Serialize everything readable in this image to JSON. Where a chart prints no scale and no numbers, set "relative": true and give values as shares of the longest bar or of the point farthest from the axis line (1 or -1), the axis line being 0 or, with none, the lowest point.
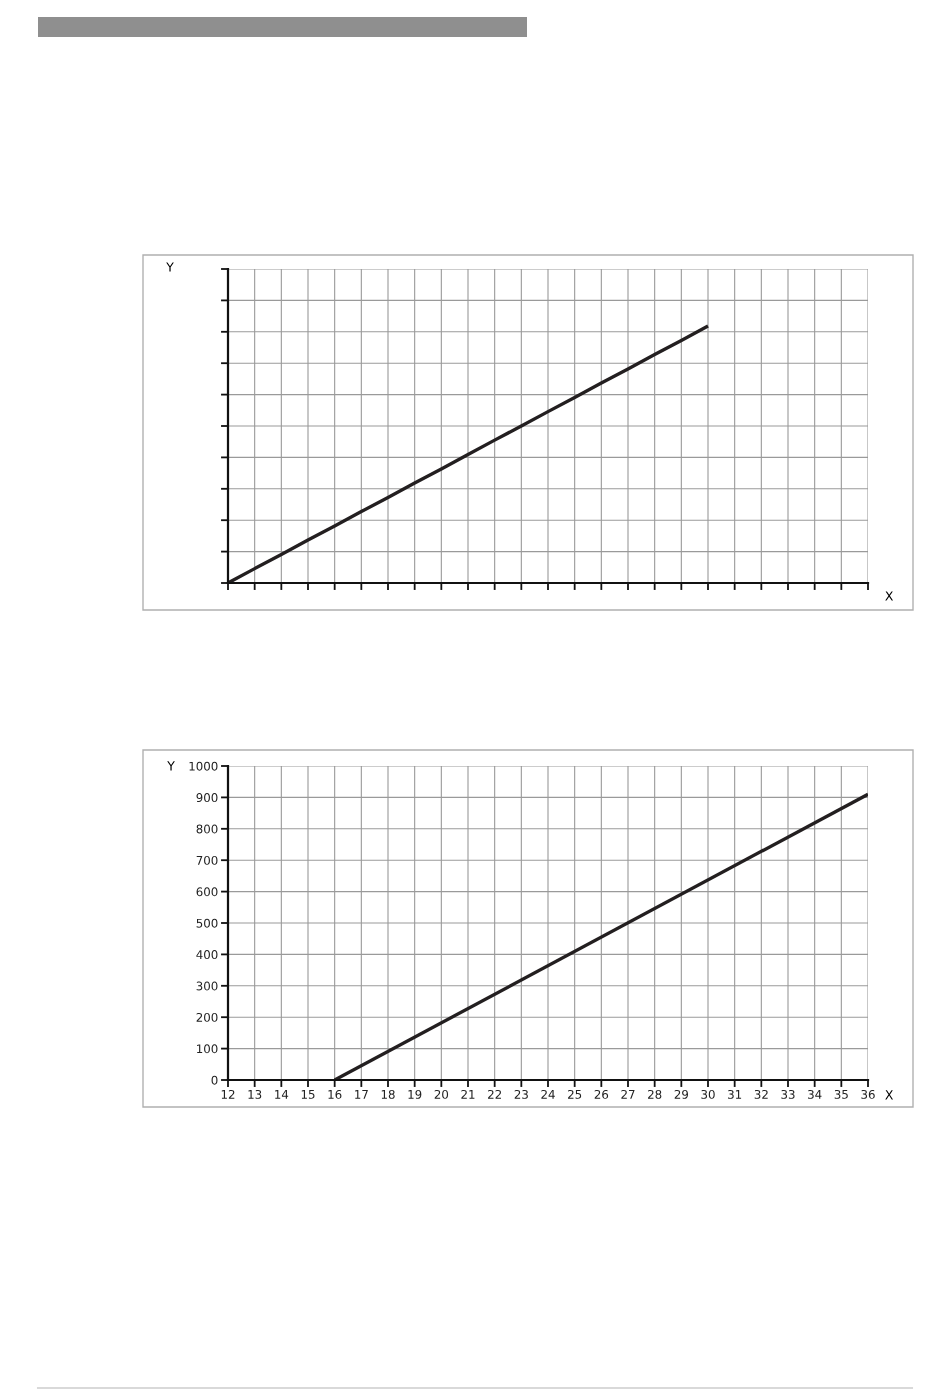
{
  "chart_data": [
    {
      "type": "line",
      "relative": true,
      "xlabel": "X",
      "ylabel": "Y",
      "categories": [
        null,
        null,
        null,
        null,
        null,
        null,
        null,
        null,
        null,
        null,
        null,
        null,
        null,
        null,
        null,
        null,
        null,
        null,
        null,
        null,
        null,
        null,
        null,
        null,
        null
      ],
      "series": [
        {
          "color": "#231f20",
          "values": [
            0,
            0.056,
            0.111,
            0.167,
            0.222,
            0.278,
            0.333,
            0.389,
            0.444,
            0.5,
            0.556,
            0.611,
            0.667,
            0.722,
            0.778,
            0.833,
            0.889,
            0.944,
            1,
            null,
            null,
            null,
            null,
            null,
            null
          ]
        }
      ],
      "grid": true
    },
    {
      "type": "line",
      "xlabel": "X",
      "ylabel": "Y",
      "x": [
        16,
        36
      ],
      "series": [
        {
          "color": "#231f20",
          "values": [
            0,
            910
          ]
        }
      ],
      "xlim": [
        12,
        36
      ],
      "ylim": [
        0,
        1000
      ],
      "xticks": [
        12,
        13,
        14,
        15,
        16,
        17,
        18,
        19,
        20,
        21,
        22,
        23,
        24,
        25,
        26,
        27,
        28,
        29,
        30,
        31,
        32,
        33,
        34,
        35,
        36
      ],
      "yticks": [
        0,
        100,
        200,
        300,
        400,
        500,
        600,
        700,
        800,
        900,
        1000
      ],
      "grid": true
    }
  ]
}
